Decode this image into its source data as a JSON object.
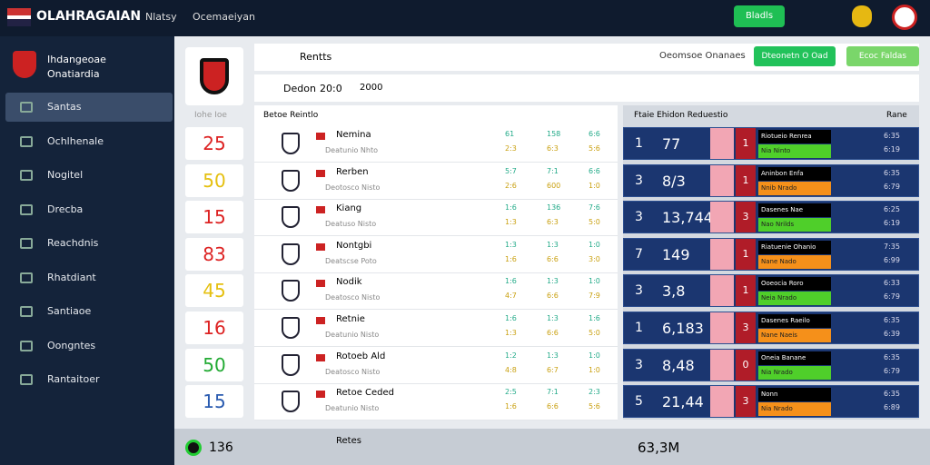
{
  "header": {
    "brand": "OLAHRAGAIAN",
    "nav": [
      "Nlatsy",
      "Ocemaeiyan"
    ],
    "button": "Bladls"
  },
  "sidebar": {
    "club": "Ihdangeoae Onatiardia",
    "items": [
      "Santas",
      "Ochlhenale",
      "Nogitel",
      "Drecba",
      "Reachdnis",
      "Rhatdiant",
      "Santiaoe",
      "Oongntes",
      "Rantaitoer"
    ]
  },
  "toolbar": {
    "title": "Rentts",
    "status": "Oeomsoe Onanaes",
    "primary": "Dteonetn O Oad",
    "secondary": "Ecoc Faldas",
    "match": "Dedon",
    "score": "20:0",
    "time": "2000"
  },
  "scores": {
    "header": "Iohe Ioe",
    "values": [
      "25",
      "50",
      "15",
      "83",
      "45",
      "16",
      "50",
      "15"
    ]
  },
  "list": {
    "header": "Betoe Reintlo",
    "rows": [
      {
        "name": "Nemina",
        "sub": "Deatunio Nhto",
        "a": [
          "61",
          "2:3"
        ],
        "b": [
          "158",
          "6:3"
        ],
        "c": [
          "6:6",
          "5:6"
        ]
      },
      {
        "name": "Rerben",
        "sub": "Deotosco Nisto",
        "a": [
          "5:7",
          "2:6"
        ],
        "b": [
          "7:1",
          "600"
        ],
        "c": [
          "6:6",
          "1:0"
        ]
      },
      {
        "name": "Kiang",
        "sub": "Deatuso Nisto",
        "a": [
          "1:6",
          "1:3"
        ],
        "b": [
          "136",
          "6:3"
        ],
        "c": [
          "7:6",
          "5:0"
        ]
      },
      {
        "name": "Nontgbi",
        "sub": "Deatscse Poto",
        "a": [
          "1:3",
          "1:6"
        ],
        "b": [
          "1:3",
          "6:6"
        ],
        "c": [
          "1:0",
          "3:0"
        ]
      },
      {
        "name": "Nodik",
        "sub": "Deatosco Nisto",
        "a": [
          "1:6",
          "4:7"
        ],
        "b": [
          "1:3",
          "6:6"
        ],
        "c": [
          "1:0",
          "7:9"
        ]
      },
      {
        "name": "Retnie",
        "sub": "Deatunio Nisto",
        "a": [
          "1:6",
          "1:3"
        ],
        "b": [
          "1:3",
          "6:6"
        ],
        "c": [
          "1:6",
          "5:0"
        ]
      },
      {
        "name": "Rotoeb Ald",
        "sub": "Deatosco Nisto",
        "a": [
          "1:2",
          "4:8"
        ],
        "b": [
          "1:3",
          "6:7"
        ],
        "c": [
          "1:0",
          "1:0"
        ]
      },
      {
        "name": "Retoe Ceded",
        "sub": "Deatunio Nisto",
        "a": [
          "2:5",
          "1:6"
        ],
        "b": [
          "7:1",
          "6:6"
        ],
        "c": [
          "2:3",
          "5:6"
        ]
      }
    ]
  },
  "standings": {
    "header": "Ftaie Ehidon Reduestio",
    "side": "Rane",
    "rows": [
      {
        "rank": "1",
        "score": "77",
        "pos": "1",
        "label": "Riotueio Renrea",
        "note": "Nia Ninto",
        "small": [
          "6:35",
          "6:19"
        ]
      },
      {
        "rank": "3",
        "score": "8/3",
        "pos": "1",
        "label": "Aninbon Enfa",
        "note": "Nnib Nrado",
        "small": [
          "6:35",
          "6:79"
        ]
      },
      {
        "rank": "3",
        "score": "13,744",
        "pos": "3",
        "label": "Dasenes Nae",
        "note": "Nao Nrilds",
        "small": [
          "6:25",
          "6:19"
        ]
      },
      {
        "rank": "7",
        "score": "149",
        "pos": "1",
        "label": "Riatuenie Ohanio",
        "note": "Nane Nado",
        "small": [
          "7:35",
          "6:99"
        ]
      },
      {
        "rank": "3",
        "score": "3,8",
        "pos": "1",
        "label": "Ooeocia Roro",
        "note": "Neia Nrado",
        "small": [
          "6:33",
          "6:79"
        ]
      },
      {
        "rank": "1",
        "score": "6,183",
        "pos": "3",
        "label": "Dasenes Raeilo",
        "note": "Nane Naeis",
        "small": [
          "6:35",
          "6:39"
        ]
      },
      {
        "rank": "3",
        "score": "8,48",
        "pos": "0",
        "label": "Oneia Banane",
        "note": "Nia Nrado",
        "small": [
          "6:35",
          "6:79"
        ]
      },
      {
        "rank": "5",
        "score": "21,44",
        "pos": "3",
        "label": "Nonn",
        "note": "Nia Nrado",
        "small": [
          "6:35",
          "6:89"
        ]
      }
    ]
  },
  "footer": {
    "score": "136",
    "name": "Retes",
    "total": "63,3M"
  }
}
